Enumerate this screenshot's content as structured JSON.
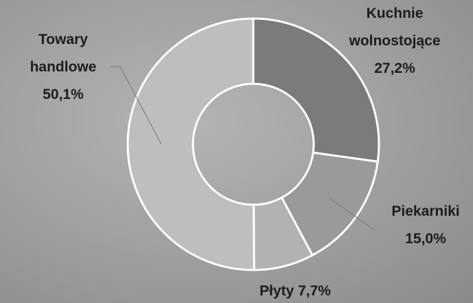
{
  "chart_data": {
    "type": "pie",
    "categories": [
      "Kuchnie wolnostojące",
      "Piekarniki",
      "Płyty",
      "Towary handlowe"
    ],
    "values": [
      27.2,
      15.0,
      7.7,
      50.1
    ],
    "value_labels": [
      "27,2%",
      "15,0%",
      "7,7%",
      "50,1%"
    ],
    "colors": [
      "#7b7b7b",
      "#9a9a9a",
      "#b2b2b2",
      "#bebebe"
    ]
  }
}
